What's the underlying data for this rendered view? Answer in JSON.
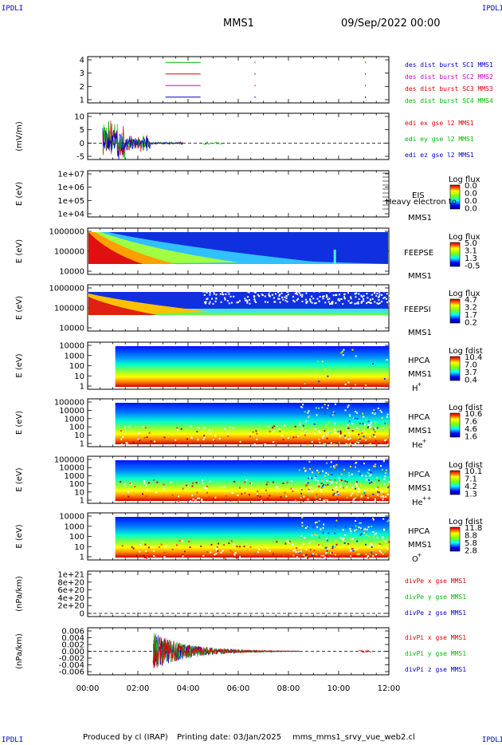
{
  "header": {
    "corner": "IPDLI",
    "title": "MMS1",
    "date": "09/Sep/2022 00:00"
  },
  "footer": {
    "produced": "Produced by cl (IRAP)",
    "printing": "Printing date: 03/Jan/2025",
    "script": "mms_mms1_srvy_vue_web2.cl"
  },
  "colors": {
    "red": "#dd0000",
    "green": "#00bb00",
    "blue": "#0000cc",
    "magenta": "#cc00cc"
  },
  "time_axis": {
    "ticks": [
      "00:00",
      "02:00",
      "04:00",
      "06:00",
      "08:00",
      "10:00",
      "12:00"
    ],
    "range_hours": [
      0,
      12
    ]
  },
  "chart_data": [
    {
      "type": "line",
      "panel": "burst",
      "ylabel": "",
      "yticks": [
        "4",
        "3",
        "2",
        "1"
      ],
      "ylim": [
        0.5,
        4.5
      ],
      "series": [
        {
          "name": "des dist burst SC1 MMS1",
          "color": "#0000cc",
          "y": 1,
          "intervals": [
            [
              3.1,
              4.5
            ]
          ]
        },
        {
          "name": "des dist burst SC2 MMS2",
          "color": "#cc00cc",
          "y": 2,
          "intervals": [
            [
              3.1,
              4.5
            ]
          ]
        },
        {
          "name": "des dist burst SC3 MMS3",
          "color": "#dd0000",
          "y": 3,
          "intervals": [
            [
              3.1,
              4.5
            ]
          ]
        },
        {
          "name": "des dist burst SC4 MMS4",
          "color": "#00bb00",
          "y": 4,
          "intervals": [
            [
              3.1,
              4.5
            ]
          ]
        }
      ]
    },
    {
      "type": "line",
      "panel": "edi",
      "ylabel": "(mV/m)",
      "yticks": [
        "10",
        "5",
        "0",
        "-5"
      ],
      "ylim": [
        -6,
        11
      ],
      "series": [
        {
          "name": "edi ex gse l2 MMS1",
          "color": "#dd0000"
        },
        {
          "name": "edi ey gse l2 MMS1",
          "color": "#00bb00"
        },
        {
          "name": "edi ez gse l2 MMS1",
          "color": "#0000cc"
        }
      ]
    },
    {
      "type": "heatmap",
      "panel": "eis",
      "ylabel": "E (eV)",
      "yticks": [
        "1e+07",
        "1e+06",
        "1e+05",
        "1e+04"
      ],
      "label_top": "EIS",
      "label_mid": "Heavy electron to",
      "label_bottom": "MMS1",
      "cb_title": "Log flux",
      "cb_ticks": [
        "0.0",
        "0.0",
        "0.0",
        "0.0"
      ]
    },
    {
      "type": "heatmap",
      "panel": "feepse",
      "ylabel": "E (eV)",
      "yticks": [
        "1000000",
        "100000",
        "10000"
      ],
      "label_top": "FEEPSE",
      "label_bottom": "MMS1",
      "cb_title": "Log flux",
      "cb_ticks": [
        "5.0",
        "3.1",
        "1.3",
        "-0.5"
      ]
    },
    {
      "type": "heatmap",
      "panel": "feepsi",
      "ylabel": "E (eV)",
      "yticks": [
        "1000000",
        "100000",
        "10000"
      ],
      "label_top": "FEEPSI",
      "label_bottom": "MMS1",
      "cb_title": "Log flux",
      "cb_ticks": [
        "4.7",
        "3.2",
        "1.7",
        "0.2"
      ]
    },
    {
      "type": "heatmap",
      "panel": "hpca-h",
      "ylabel": "E (eV)",
      "yticks": [
        "10000",
        "1000",
        "100",
        "10",
        "1"
      ],
      "label_top": "HPCA",
      "label_mid": "MMS1",
      "label_ion": "H",
      "label_sup": "+",
      "cb_title": "Log fdist",
      "cb_ticks": [
        "10.4",
        "7.0",
        "3.7",
        "0.4"
      ]
    },
    {
      "type": "heatmap",
      "panel": "hpca-he",
      "ylabel": "E (eV)",
      "yticks": [
        "100000",
        "10000",
        "1000",
        "100",
        "10",
        "1"
      ],
      "label_top": "HPCA",
      "label_mid": "MMS1",
      "label_ion": "He",
      "label_sup": "+",
      "cb_title": "Log fdist",
      "cb_ticks": [
        "10.6",
        "7.6",
        "4.6",
        "1.6"
      ]
    },
    {
      "type": "heatmap",
      "panel": "hpca-he2",
      "ylabel": "E (eV)",
      "yticks": [
        "100000",
        "10000",
        "1000",
        "100",
        "10",
        "1"
      ],
      "label_top": "HPCA",
      "label_mid": "MMS1",
      "label_ion": "He",
      "label_sup": "++",
      "cb_title": "Log fdist",
      "cb_ticks": [
        "10.1",
        "7.1",
        "4.2",
        "1.3"
      ]
    },
    {
      "type": "heatmap",
      "panel": "hpca-o",
      "ylabel": "E (eV)",
      "yticks": [
        "10000",
        "1000",
        "100",
        "10",
        "1"
      ],
      "label_top": "HPCA",
      "label_mid": "MMS1",
      "label_ion": "O",
      "label_sup": "+",
      "cb_title": "Log fdist",
      "cb_ticks": [
        "11.8",
        "8.8",
        "5.8",
        "2.8"
      ]
    },
    {
      "type": "line",
      "panel": "divpe",
      "ylabel": "(nPa/km)",
      "yticks": [
        "1e+21",
        "8e+20",
        "6e+20",
        "4e+20",
        "2e+20",
        "0"
      ],
      "series": [
        {
          "name": "divPe x gse MMS1",
          "color": "#dd0000"
        },
        {
          "name": "divPe y gse MMS1",
          "color": "#00bb00"
        },
        {
          "name": "divPe z gse MMS1",
          "color": "#0000cc"
        }
      ]
    },
    {
      "type": "line",
      "panel": "divpi",
      "ylabel": "(nPa/km)",
      "yticks": [
        "0.006",
        "0.004",
        "0.002",
        "0.000",
        "-0.002",
        "-0.004",
        "-0.006"
      ],
      "ylim": [
        -0.007,
        0.007
      ],
      "series": [
        {
          "name": "divPi x gse MMS1",
          "color": "#dd0000"
        },
        {
          "name": "divPi y gse MMS1",
          "color": "#00bb00"
        },
        {
          "name": "divPi z gse MMS1",
          "color": "#0000cc"
        }
      ]
    }
  ]
}
